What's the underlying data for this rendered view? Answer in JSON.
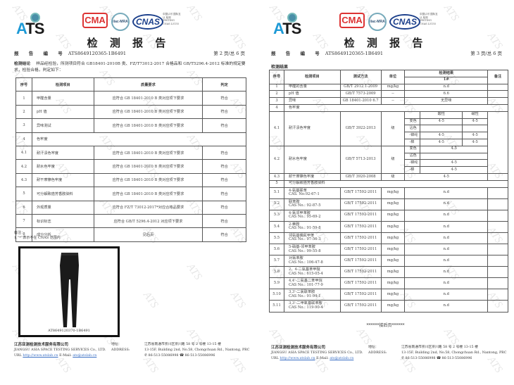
{
  "watermark": "ATS",
  "header": {
    "logo": "ATS",
    "cma": "CMA",
    "cma_no": "151012340089",
    "ilac": "ilac-MRA",
    "cnas": "CNAS",
    "cnas_text": "中国认可 国际互认 检测 TESTING CNAS L5155",
    "title": "检 测 报 告",
    "report_no_label": "报 告 编 号",
    "report_no": "ATS8649120365-1B6491"
  },
  "left": {
    "page": "第 2 页/总 6 页",
    "conclusion_label": "检测结论",
    "conclusion": "样品经检验，所测项目符合 GB18401-2010B 类、FZ/T73012-2017 合格品和 GB/T5296.4-2012 标准的规定要求，检验合格，判定如下：",
    "columns": [
      "序号",
      "检测项目",
      "质量要求",
      "判定"
    ],
    "rows": [
      [
        "1",
        "甲醛含量",
        "应符合 GB 18401-2010 B 类对应项下要求",
        "符合"
      ],
      [
        "2",
        "pH 值",
        "应符合 GB 18401-2010 B 类对应项下要求",
        "符合"
      ],
      [
        "3",
        "异味测试",
        "应符合 GB 18401-2010 B 类对应项下要求",
        "符合"
      ],
      [
        "4",
        "色牢度",
        "",
        ""
      ],
      [
        "4.1",
        "耐汗渍色牢度",
        "应符合 GB 18401-2010 B 类对应项下要求",
        "符合"
      ],
      [
        "4.2",
        "耐水色牢度",
        "应符合 GB 18401-2010 B 类对应项下要求",
        "符合"
      ],
      [
        "4.3",
        "耐干摩擦色牢度",
        "应符合 GB 18401-2010 B 类对应项下要求",
        "符合"
      ],
      [
        "5",
        "可分解致癌芳香胺染料",
        "应符合 GB 18401-2010 B 类对应项下要求",
        "符合"
      ],
      [
        "6",
        "外观质量",
        "应符合 FZ/T 73012-2017*对应合格品要求",
        "符合"
      ],
      [
        "7",
        "标识标志",
        "应符合 GB/T 5296.4-2012 对应项下要求",
        "符合"
      ],
      [
        "8",
        "成分分析",
        "见后页",
        "符合"
      ]
    ],
    "notes": [
      "备注：",
      "1.“*”表示不在 CNAS 范围内"
    ],
    "photo_caption": "AT8649120370-1B6491"
  },
  "right": {
    "page": "第 3 页/总 6 页",
    "section": "检测结果",
    "columns": {
      "no": "序号",
      "item": "检测项目",
      "method": "测试方法",
      "unit": "单位",
      "result": "检测结果",
      "sample": "1#",
      "remark": "备注"
    },
    "rows_top": [
      [
        "1",
        "甲醛的含量",
        "GB/T 2912.1-2009",
        "mg/kg",
        "n.d"
      ],
      [
        "2",
        "pH 值",
        "GB/T 7573-2009",
        "--",
        "6.6"
      ],
      [
        "3",
        "异味",
        "GB 18401-2010 6.7",
        "--",
        "无异味"
      ]
    ],
    "row4": [
      "4",
      "色牢度"
    ],
    "r41": {
      "no": "4.1",
      "item": "耐汗渍色牢度",
      "method": "GB/T 3922-2013",
      "unit": "级",
      "acid": "酸性",
      "alkali": "碱性",
      "sub": [
        [
          "变色",
          "4-5",
          "4-5"
        ],
        [
          "沾色",
          "",
          ""
        ],
        [
          "-锦纶",
          "4-5",
          "4-5"
        ],
        [
          "-棉",
          "4-5",
          "4-5"
        ]
      ]
    },
    "r42": {
      "no": "4.2",
      "item": "耐水色牢度",
      "method": "GB/T 5713-2013",
      "unit": "级",
      "sub": [
        [
          "变色",
          "4-5"
        ],
        [
          "沾色",
          ""
        ],
        [
          "-锦纶",
          "4-5"
        ],
        [
          "-棉",
          "4-5"
        ]
      ]
    },
    "r43": [
      "4.3",
      "耐干摩擦色牢度",
      "GB/T 3920-2008",
      "级",
      "4-5"
    ],
    "row5": [
      "5",
      "可分解致癌芳香胺染料"
    ],
    "rows_cas": [
      [
        "5.1",
        "4-氨基联苯",
        "CAS. No:92-67-1",
        "GB/T 17592-2011",
        "mg/kg",
        "n.d"
      ],
      [
        "5.2",
        "联苯胺",
        "CAS No.: 92-87-5",
        "GB/T 17592-2011",
        "mg/kg",
        "n.d"
      ],
      [
        "5.3",
        "4-氯邻甲苯胺",
        "CAS No.: 95-69-2",
        "GB/T 17592-2011",
        "mg/kg",
        "n.d"
      ],
      [
        "5.4",
        "2-萘胺",
        "CAS No.: 91-59-8",
        "GB/T 17592-2011",
        "mg/kg",
        "n.d"
      ],
      [
        "5.5",
        "邻氨基偶氮甲苯",
        "CAS No.: 97-56-3",
        "GB/T 17592-2011",
        "mg/kg",
        "n.d"
      ],
      [
        "5.6",
        "5-硝基-邻甲苯胺",
        "CAS No.: 99-55-8",
        "GB/T 17592-2011",
        "mg/kg",
        "n.d"
      ],
      [
        "5.7",
        "对氯苯胺",
        "CAS No.: 106-47-8",
        "GB/T 17592-2011",
        "mg/kg",
        "n.d"
      ],
      [
        "5.8",
        "2，4-二氨基苯甲醚",
        "CAS No.: 615-05-4",
        "GB/T 17592-2011",
        "mg/kg",
        "n.d"
      ],
      [
        "5.9",
        "4,4'-二氨基二苯甲烷",
        "CAS No.: 101-77-9",
        "GB/T 17592-2011",
        "mg/kg",
        "n.d"
      ],
      [
        "5.10",
        "3,3'-二氯联苯胺",
        "CAS No.: 91-94-1",
        "GB/T 17592-2011",
        "mg/kg",
        "n.d"
      ],
      [
        "5.11",
        "3,3'-二甲氧基联苯胺",
        "CAS No.: 119-90-4",
        "GB/T 17592-2011",
        "mg/kg",
        "n.d"
      ]
    ],
    "end": "******接后页******"
  },
  "footer": {
    "company_cn": "江苏亚测检测技术服务有限公司",
    "company_en": "JIANGSU ASIA SPACE TESTING SERVICES Co., LTD.",
    "url_label": "URL",
    "url": "http://www.atslab.cn",
    "email_label": "E-Mail:",
    "email": "ats@atslab.cn",
    "addr_label_cn": "地址：",
    "addr_label_en": "ADDRESS:",
    "addr_cn": "江苏省南通市崇川区崇川路 58 号 2 号楼 13-15 楼",
    "addr_en": "13-15F, Building 2nd, No.58, Chongchuan Rd., Nantong, PRC",
    "phone_icon": "phone-icon",
    "phone": "86-513-55086998",
    "fax_icon": "fax-icon",
    "fax": "86-513-55086996"
  }
}
